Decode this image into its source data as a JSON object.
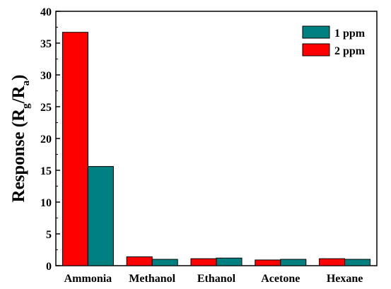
{
  "chart_data": {
    "type": "bar",
    "categories": [
      "Ammonia",
      "Methanol",
      "Ethanol",
      "Acetone",
      "Hexane"
    ],
    "series": [
      {
        "name": "2 ppm",
        "color": "#ff0000",
        "values": [
          36.7,
          1.4,
          1.1,
          0.9,
          1.1
        ]
      },
      {
        "name": "1 ppm",
        "color": "#008080",
        "values": [
          15.6,
          1.0,
          1.2,
          1.0,
          1.0
        ]
      }
    ],
    "legend_order": [
      "1 ppm",
      "2 ppm"
    ],
    "ylabel": {
      "main": "Response (R",
      "sub_g": "g",
      "slash": "/R",
      "sub_a": "a",
      "close": ")"
    },
    "ylim": [
      0,
      40
    ],
    "yticks": [
      "0",
      "5",
      "10",
      "15",
      "20",
      "25",
      "30",
      "35",
      "40"
    ],
    "legend_position": "top-right",
    "grid": false
  }
}
